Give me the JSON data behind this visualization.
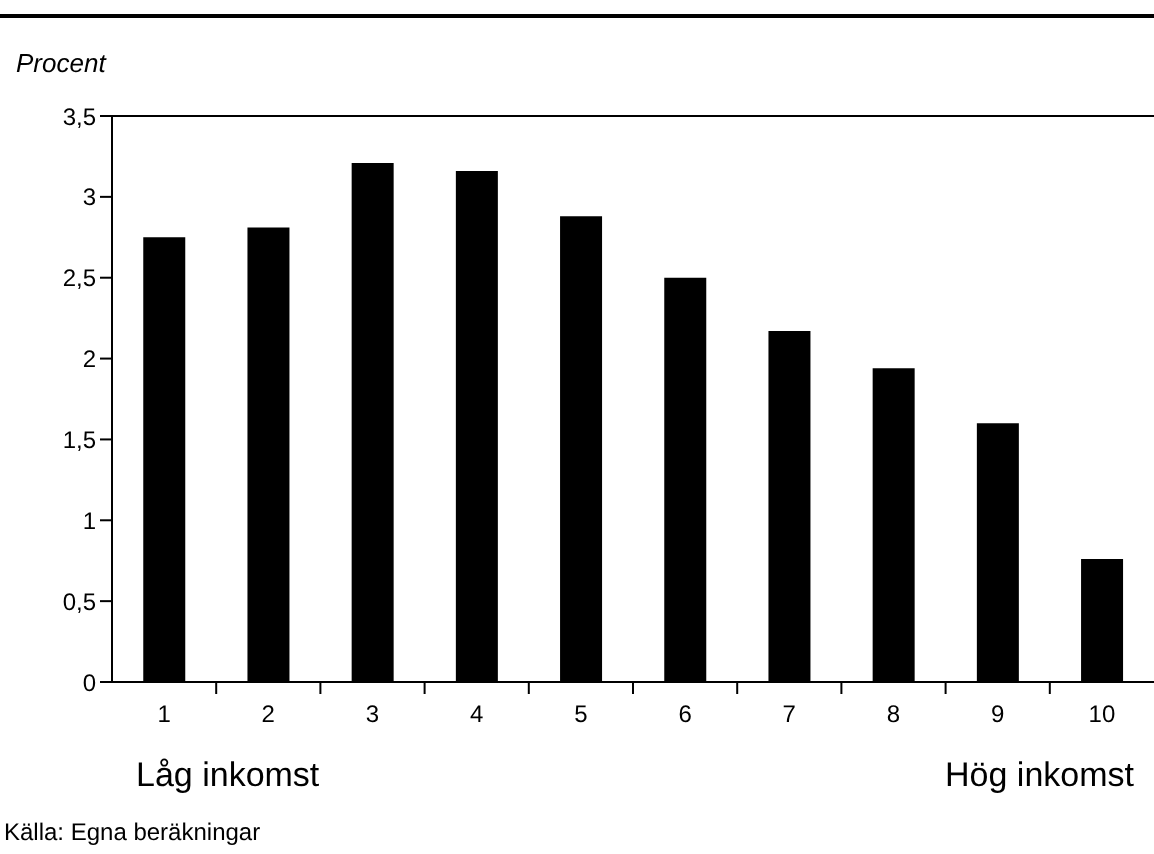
{
  "chart_data": {
    "type": "bar",
    "ylabel": "Procent",
    "categories": [
      "1",
      "2",
      "3",
      "4",
      "5",
      "6",
      "7",
      "8",
      "9",
      "10"
    ],
    "values": [
      2.75,
      2.81,
      3.21,
      3.16,
      2.88,
      2.5,
      2.17,
      1.94,
      1.6,
      0.76
    ],
    "color": "#000000",
    "ylim": [
      0,
      3.5
    ],
    "yticks": [
      0,
      {
        "value": 0.5,
        "label": "0,5"
      },
      1,
      {
        "value": 1.5,
        "label": "1,5"
      },
      2,
      {
        "value": 2.5,
        "label": "2,5"
      },
      3,
      {
        "value": 3.5,
        "label": "3,5"
      }
    ],
    "grid": false,
    "legend": false,
    "annotations": [
      "Låg inkomst",
      "Hög inkomst",
      "Källa: Egna beräkningar"
    ]
  }
}
